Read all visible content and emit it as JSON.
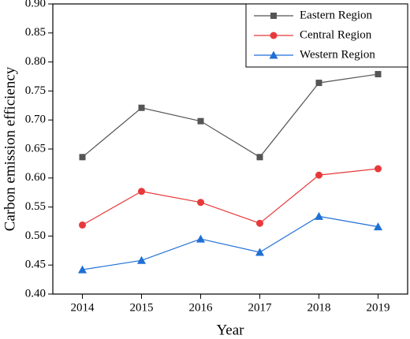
{
  "chart_data": {
    "type": "line",
    "x_label": "Year",
    "y_label": "Carbon emission efficiency",
    "x": [
      2014,
      2015,
      2016,
      2017,
      2018,
      2019
    ],
    "series": [
      {
        "name": "Eastern Region",
        "color": "#555555",
        "marker": "square",
        "values": [
          0.636,
          0.721,
          0.698,
          0.636,
          0.764,
          0.779
        ]
      },
      {
        "name": "Central Region",
        "color": "#e8393a",
        "marker": "circle",
        "values": [
          0.519,
          0.577,
          0.558,
          0.522,
          0.605,
          0.616
        ]
      },
      {
        "name": "Western Region",
        "color": "#1f6fd6",
        "marker": "triangle",
        "values": [
          0.442,
          0.458,
          0.495,
          0.472,
          0.534,
          0.516
        ]
      }
    ],
    "xlim": [
      2013.5,
      2019.5
    ],
    "xticks": [
      2014,
      2015,
      2016,
      2017,
      2018,
      2019
    ],
    "ylim": [
      0.4,
      0.9
    ],
    "yticks": [
      {
        "value": 0.4,
        "label": "0.40"
      },
      {
        "value": 0.45,
        "label": "0.45"
      },
      {
        "value": 0.5,
        "label": "0.50"
      },
      {
        "value": 0.55,
        "label": "0.55"
      },
      {
        "value": 0.6,
        "label": "0.60"
      },
      {
        "value": 0.65,
        "label": "0.65"
      },
      {
        "value": 0.7,
        "label": "0.70"
      },
      {
        "value": 0.75,
        "label": "0.75"
      },
      {
        "value": 0.8,
        "label": "0.80"
      },
      {
        "value": 0.85,
        "label": "0.85"
      },
      {
        "value": 0.9,
        "label": "0.90"
      }
    ],
    "legend": "top-right",
    "grid": false
  }
}
